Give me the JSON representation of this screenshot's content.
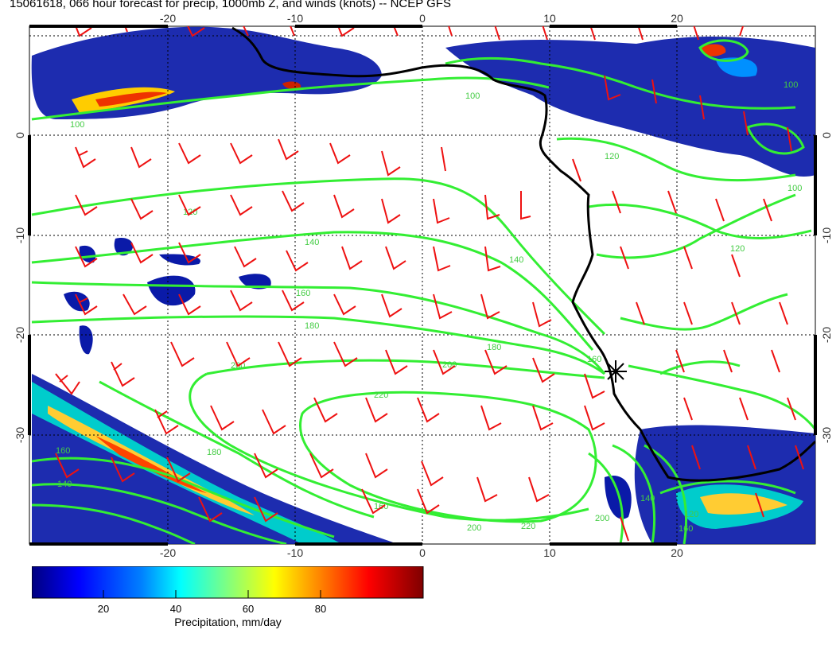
{
  "title": "15061618, 066 hour forecast for precip, 1000mb Z, and winds (knots) -- NCEP GFS",
  "map": {
    "x_ticks": [
      -20,
      -10,
      0,
      10,
      20
    ],
    "y_ticks": [
      0,
      -10,
      -20,
      -30
    ],
    "x_range": [
      -30.5,
      30.5
    ],
    "y_range": [
      -40,
      10.5
    ],
    "contour_color": "#33ee33",
    "wind_barb_color": "#ee1111",
    "coast_color": "#000000",
    "contour_labels": [
      "100",
      "140",
      "160",
      "180",
      "200",
      "220",
      "120",
      "160",
      "140",
      "180",
      "200",
      "220",
      "200",
      "160",
      "180",
      "200",
      "140",
      "160",
      "120",
      "100",
      "100",
      "120",
      "140",
      "160",
      "100",
      "120"
    ],
    "marker": {
      "symbol": "asterisk",
      "lon": 14.8,
      "lat": -23.5
    }
  },
  "colorbar": {
    "label": "Precipitation, mm/day",
    "ticks": [
      "20",
      "40",
      "60",
      "80"
    ],
    "tick_values": [
      20,
      40,
      60,
      80
    ],
    "range": [
      0,
      100
    ],
    "colors": [
      "#00007f",
      "#0000ff",
      "#0080ff",
      "#00ffff",
      "#80ff80",
      "#ffff00",
      "#ff8000",
      "#ff0000",
      "#7f0000"
    ]
  }
}
